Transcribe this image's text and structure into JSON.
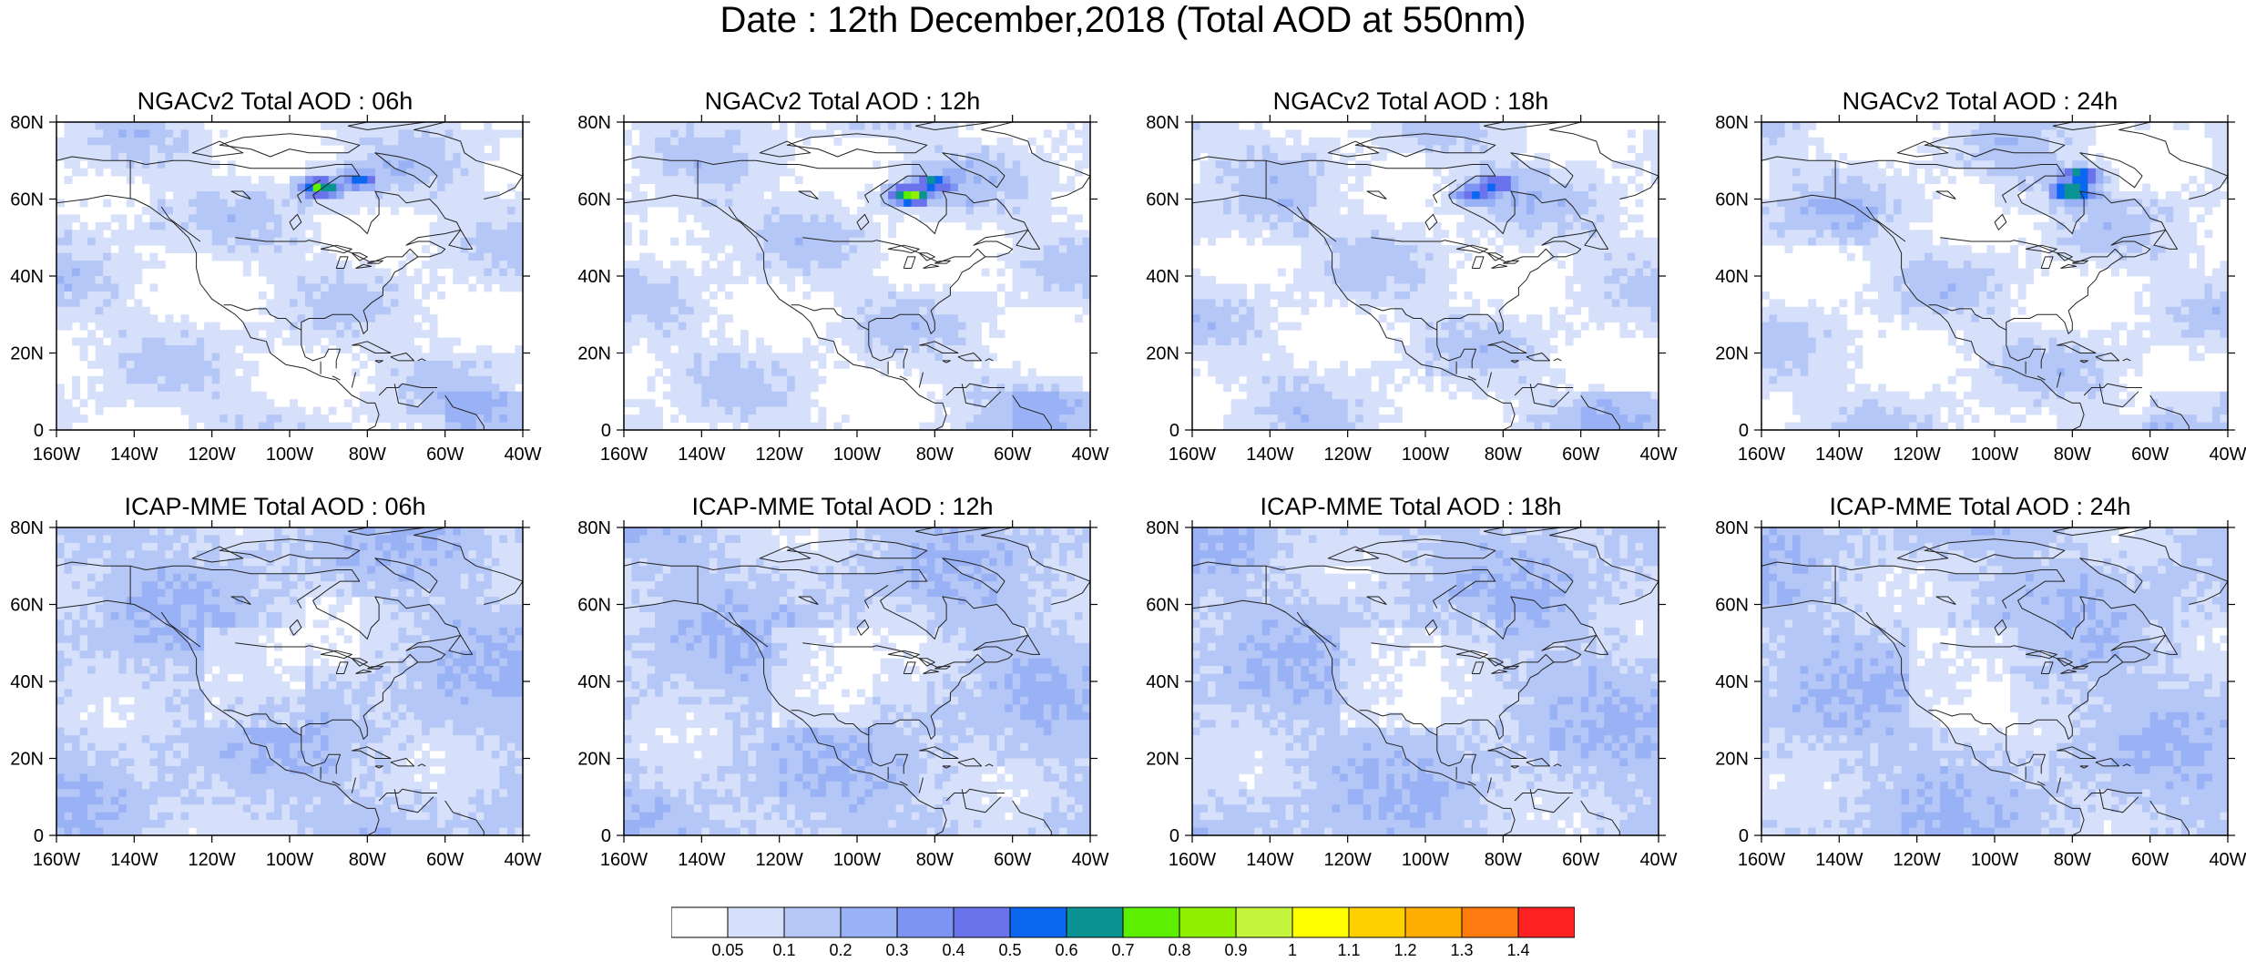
{
  "title": "Date : 12th December,2018 (Total AOD at 550nm)",
  "panels": [
    {
      "title": "NGACv2 Total AOD : 06h",
      "model": "NGACv2",
      "lead_hour": "06h",
      "plumes": [
        {
          "lon": -92,
          "lat": 63,
          "level": 8
        },
        {
          "lon": -82,
          "lat": 65,
          "level": 6
        }
      ]
    },
    {
      "title": "NGACv2 Total AOD : 12h",
      "model": "NGACv2",
      "lead_hour": "12h",
      "plumes": [
        {
          "lon": -86,
          "lat": 61,
          "level": 9
        },
        {
          "lon": -80,
          "lat": 64,
          "level": 7
        }
      ]
    },
    {
      "title": "NGACv2 Total AOD : 18h",
      "model": "NGACv2",
      "lead_hour": "18h",
      "plumes": [
        {
          "lon": -87,
          "lat": 61,
          "level": 6
        },
        {
          "lon": -82,
          "lat": 64,
          "level": 7
        }
      ]
    },
    {
      "title": "NGACv2 Total AOD : 24h",
      "model": "NGACv2",
      "lead_hour": "24h",
      "plumes": [
        {
          "lon": -80,
          "lat": 62,
          "level": 8
        },
        {
          "lon": -78,
          "lat": 66,
          "level": 7
        }
      ]
    },
    {
      "title": "ICAP-MME Total AOD : 06h",
      "model": "ICAP-MME",
      "lead_hour": "06h",
      "plumes": []
    },
    {
      "title": "ICAP-MME Total AOD : 12h",
      "model": "ICAP-MME",
      "lead_hour": "12h",
      "plumes": []
    },
    {
      "title": "ICAP-MME Total AOD : 18h",
      "model": "ICAP-MME",
      "lead_hour": "18h",
      "plumes": []
    },
    {
      "title": "ICAP-MME Total AOD : 24h",
      "model": "ICAP-MME",
      "lead_hour": "24h",
      "plumes": []
    }
  ],
  "map": {
    "lon_range": [
      -160,
      -40
    ],
    "lat_range": [
      0,
      80
    ],
    "lon_ticks": [
      "160W",
      "140W",
      "120W",
      "100W",
      "80W",
      "60W",
      "40W"
    ],
    "lat_ticks": [
      "0",
      "20N",
      "40N",
      "60N",
      "80N"
    ]
  },
  "colorbar": {
    "labels": [
      "0.05",
      "0.1",
      "0.2",
      "0.3",
      "0.4",
      "0.5",
      "0.6",
      "0.7",
      "0.8",
      "0.9",
      "1",
      "1.1",
      "1.2",
      "1.3",
      "1.4"
    ],
    "colors": [
      "#ffffff",
      "#d6e0fa",
      "#b5c7f6",
      "#99b1f5",
      "#7e94f2",
      "#6a72ec",
      "#0c67f0",
      "#0b9393",
      "#5cf000",
      "#91f000",
      "#c4f53c",
      "#ffff00",
      "#ffcf00",
      "#ffad00",
      "#ff7b0f",
      "#ff2222"
    ]
  }
}
